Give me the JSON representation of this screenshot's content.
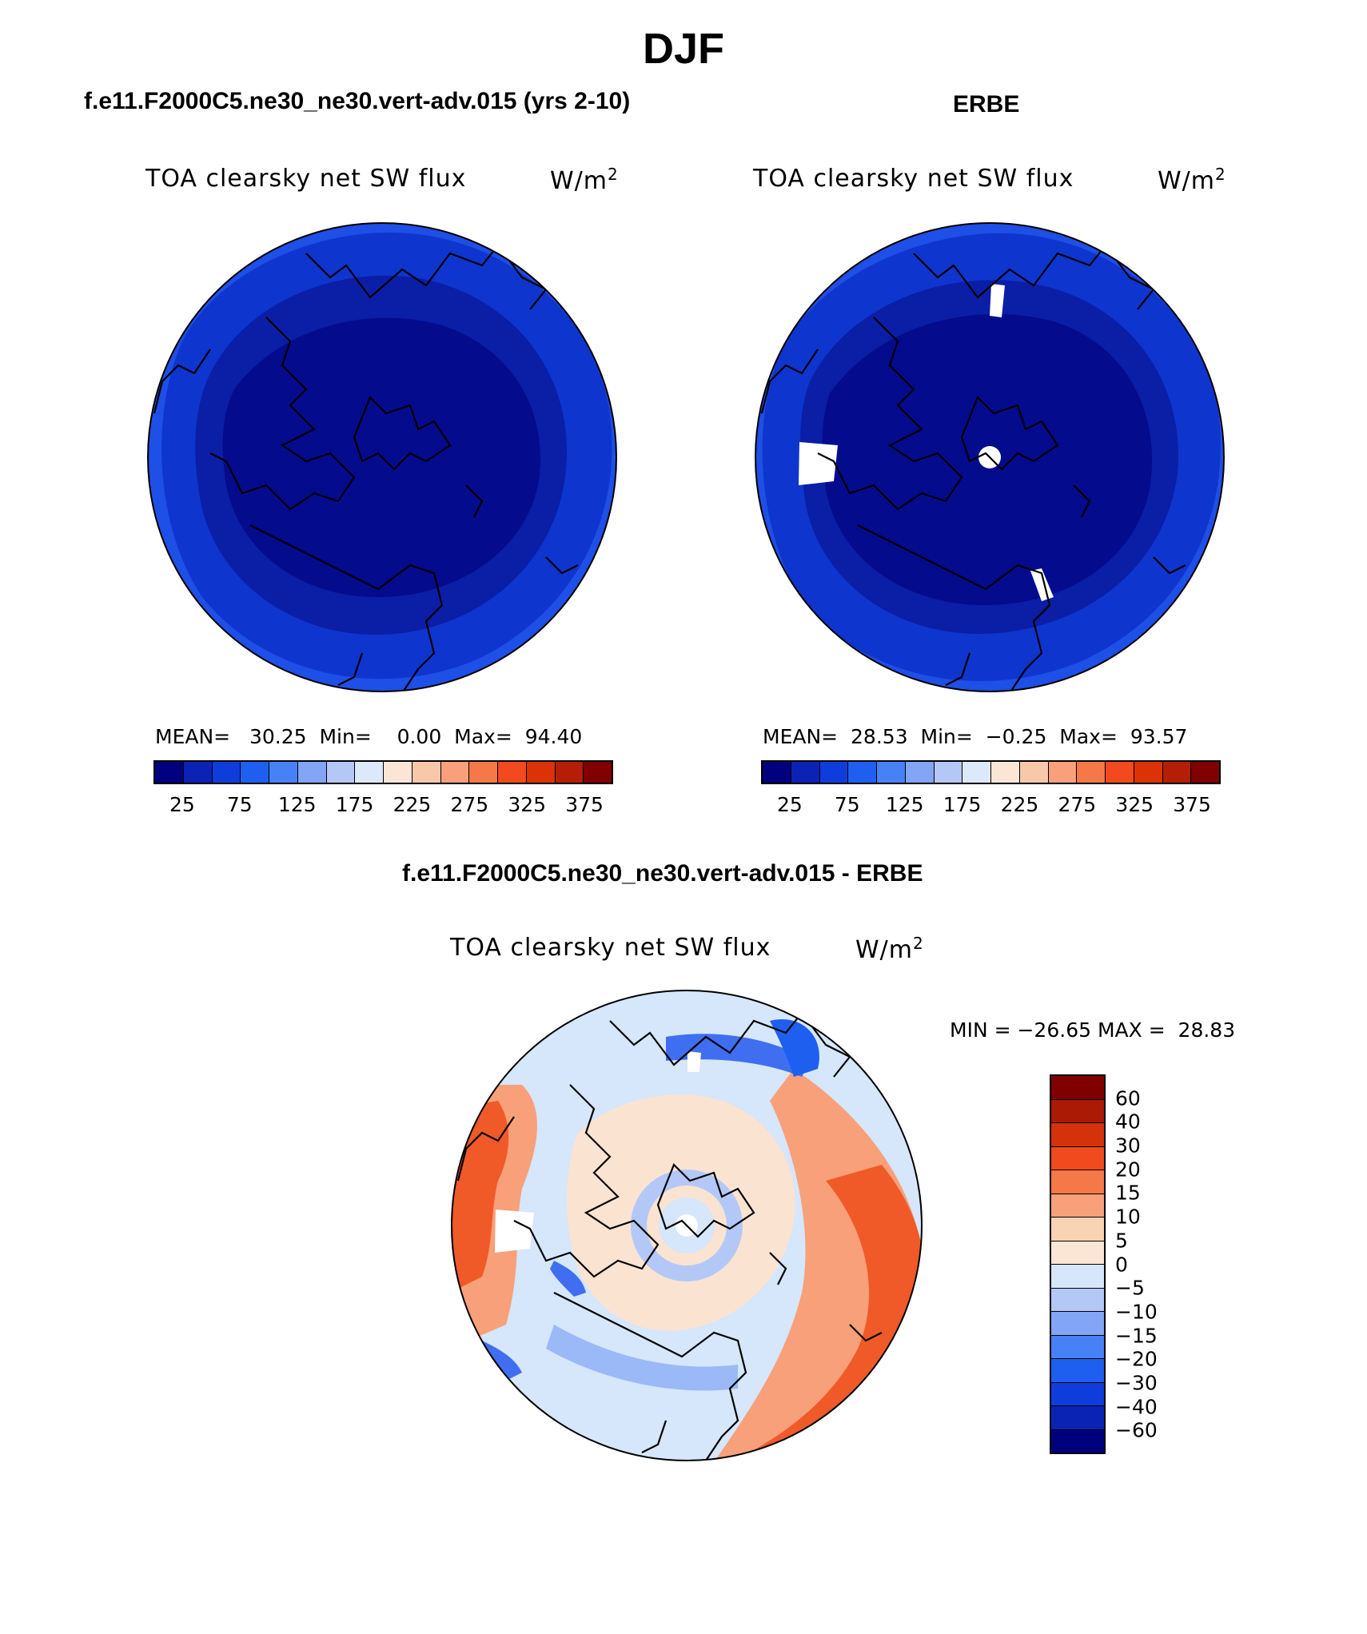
{
  "title": "DJF",
  "panels": {
    "model": {
      "title": "f.e11.F2000C5.ne30_ne30.vert-adv.015 (yrs 2-10)",
      "label": "TOA clearsky net SW flux",
      "units": "W/m",
      "units_exp": "2",
      "mean_label": "MEAN=",
      "mean": "30.25",
      "min_label": "Min=",
      "min": "0.00",
      "max_label": "Max=",
      "max": "94.40"
    },
    "obs": {
      "title": "ERBE",
      "label": "TOA clearsky net SW flux",
      "units": "W/m",
      "units_exp": "2",
      "mean_label": "MEAN=",
      "mean": "28.53",
      "min_label": "Min=",
      "min": "−0.25",
      "max_label": "Max=",
      "max": "93.57"
    },
    "diff": {
      "title": "f.e11.F2000C5.ne30_ne30.vert-adv.015 - ERBE",
      "label": "TOA clearsky net SW flux",
      "units": "W/m",
      "units_exp": "2",
      "minmax": "MIN = −26.65 MAX =  28.83"
    }
  },
  "colorbars": {
    "abs": {
      "ticks": [
        "25",
        "75",
        "125",
        "175",
        "225",
        "275",
        "325",
        "375"
      ],
      "colors": [
        "#00007f",
        "#0a23b4",
        "#0f3ddc",
        "#1e5ff0",
        "#4682f5",
        "#82a5f5",
        "#b4c8f8",
        "#dce9fb",
        "#fbe6d6",
        "#f9c8aa",
        "#f7a07a",
        "#f47848",
        "#f04a1e",
        "#dc3208",
        "#b41e05",
        "#800000"
      ]
    },
    "diff": {
      "ticks": [
        "60",
        "40",
        "30",
        "20",
        "15",
        "10",
        "5",
        "0",
        "−5",
        "−10",
        "−15",
        "−20",
        "−30",
        "−40",
        "−60"
      ],
      "colors": [
        "#800000",
        "#aa1a04",
        "#d4320a",
        "#f04a1e",
        "#f47848",
        "#f7a07a",
        "#fad2b4",
        "#fbe6d6",
        "#d6e6fb",
        "#b4c8f8",
        "#82a5f5",
        "#4682f5",
        "#1e5ff0",
        "#0f3ddc",
        "#0a23b4",
        "#00007f"
      ]
    }
  },
  "map_colors": {
    "abs_outer": "#1e4fe6",
    "abs_mid": "#0f35cf",
    "abs_inner": "#0a1ea6",
    "abs_core": "#040b8c",
    "diff_base": "#d6e6fb",
    "diff_warm": "#fbe3d2",
    "diff_warm2": "#f7a07a",
    "diff_hot": "#f05a28",
    "diff_cool": "#9ab9f6",
    "diff_cold": "#3f6ff0",
    "missing": "#ffffff"
  }
}
